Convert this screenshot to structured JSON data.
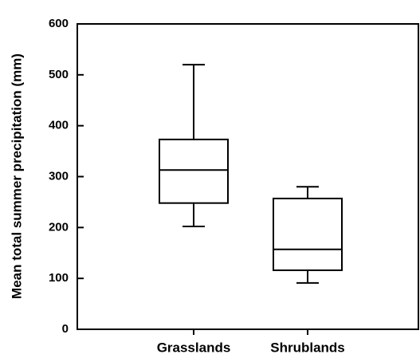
{
  "chart_data": {
    "type": "box",
    "ylabel": "Mean total summer precipitation (mm)",
    "categories": [
      "Grasslands",
      "Shrublands"
    ],
    "boxes": [
      {
        "min": 202,
        "q1": 248,
        "median": 313,
        "q3": 373,
        "max": 520
      },
      {
        "min": 91,
        "q1": 116,
        "median": 157,
        "q3": 257,
        "max": 280
      }
    ],
    "color": "#000000",
    "ylim": [
      0,
      600
    ],
    "yticks": [
      0,
      100,
      200,
      300,
      400,
      500,
      600
    ]
  }
}
